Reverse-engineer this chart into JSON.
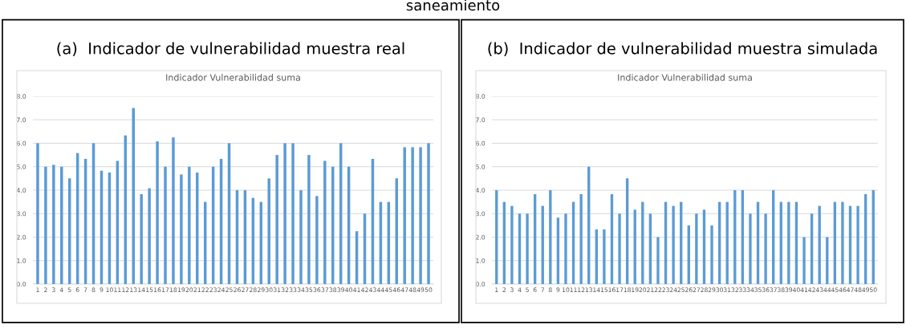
{
  "chart_data": [
    {
      "type": "bar",
      "title": "(a)  Indicador de vulnerabilidad muestra real",
      "subtitle": "Indicador Vulnerabilidad suma",
      "annotations": [
        "saneamiento"
      ],
      "categories": [
        "1",
        "2",
        "3",
        "4",
        "5",
        "6",
        "7",
        "8",
        "9",
        "10",
        "11",
        "12",
        "13",
        "14",
        "15",
        "16",
        "17",
        "18",
        "19",
        "20",
        "21",
        "22",
        "23",
        "24",
        "25",
        "26",
        "27",
        "28",
        "29",
        "30",
        "31",
        "32",
        "33",
        "34",
        "35",
        "36",
        "37",
        "38",
        "39",
        "40",
        "41",
        "42",
        "43",
        "44",
        "45",
        "46",
        "47",
        "48",
        "49",
        "50"
      ],
      "values": [
        6.0,
        5.0,
        5.08,
        5.0,
        4.5,
        5.58,
        5.33,
        6.0,
        4.83,
        4.75,
        5.25,
        6.33,
        7.5,
        3.83,
        4.08,
        6.08,
        5.0,
        6.25,
        4.67,
        5.0,
        4.75,
        3.5,
        5.0,
        5.33,
        6.0,
        4.0,
        4.0,
        3.67,
        3.5,
        4.5,
        5.5,
        6.0,
        6.0,
        4.0,
        5.5,
        3.75,
        5.25,
        5.0,
        6.0,
        5.0,
        2.25,
        3.0,
        5.33,
        3.5,
        3.5,
        4.5,
        5.83,
        5.83,
        5.83,
        6.0
      ],
      "color": "#5b9bd5",
      "ylim": [
        0,
        8
      ],
      "yticks": [
        {
          "value": 0,
          "label": "0.0"
        },
        {
          "value": 1,
          "label": "1.0"
        },
        {
          "value": 2,
          "label": "2.0"
        },
        {
          "value": 3,
          "label": "3.0"
        },
        {
          "value": 4,
          "label": "4.0"
        },
        {
          "value": 5,
          "label": "5.0"
        },
        {
          "value": 6,
          "label": "6.0"
        },
        {
          "value": 7,
          "label": "7.0"
        },
        {
          "value": 8,
          "label": "8.0"
        }
      ],
      "grid": "y",
      "legend": false
    },
    {
      "type": "bar",
      "title": "(b)  Indicador de vulnerabilidad muestra simulada",
      "subtitle": "Indicador Vulnerabilidad suma",
      "categories": [
        "1",
        "2",
        "3",
        "4",
        "5",
        "6",
        "7",
        "8",
        "9",
        "10",
        "11",
        "12",
        "13",
        "14",
        "15",
        "16",
        "17",
        "18",
        "19",
        "20",
        "21",
        "22",
        "23",
        "24",
        "25",
        "26",
        "27",
        "28",
        "29",
        "30",
        "31",
        "32",
        "33",
        "34",
        "35",
        "36",
        "37",
        "38",
        "39",
        "40",
        "41",
        "42",
        "43",
        "44",
        "45",
        "46",
        "47",
        "48",
        "49",
        "50"
      ],
      "values": [
        4.0,
        3.5,
        3.33,
        3.0,
        3.0,
        3.83,
        3.33,
        4.0,
        2.83,
        3.0,
        3.5,
        3.83,
        5.0,
        2.33,
        2.33,
        3.83,
        3.0,
        4.5,
        3.17,
        3.5,
        3.0,
        2.0,
        3.5,
        3.33,
        3.5,
        2.5,
        3.0,
        3.17,
        2.5,
        3.5,
        3.5,
        4.0,
        4.0,
        3.0,
        3.5,
        3.0,
        4.0,
        3.5,
        3.5,
        3.5,
        2.0,
        3.0,
        3.33,
        2.0,
        3.5,
        3.5,
        3.33,
        3.33,
        3.83,
        4.0
      ],
      "color": "#5b9bd5",
      "ylim": [
        0,
        8
      ],
      "yticks": [
        {
          "value": 0,
          "label": "0.0"
        },
        {
          "value": 1,
          "label": "1.0"
        },
        {
          "value": 2,
          "label": "2.0"
        },
        {
          "value": 3,
          "label": "3.0"
        },
        {
          "value": 4,
          "label": "4.0"
        },
        {
          "value": 5,
          "label": "5.0"
        },
        {
          "value": 6,
          "label": "6.0"
        },
        {
          "value": 7,
          "label": "7.0"
        },
        {
          "value": 8,
          "label": "8.0"
        }
      ],
      "grid": "y",
      "legend": false
    }
  ]
}
